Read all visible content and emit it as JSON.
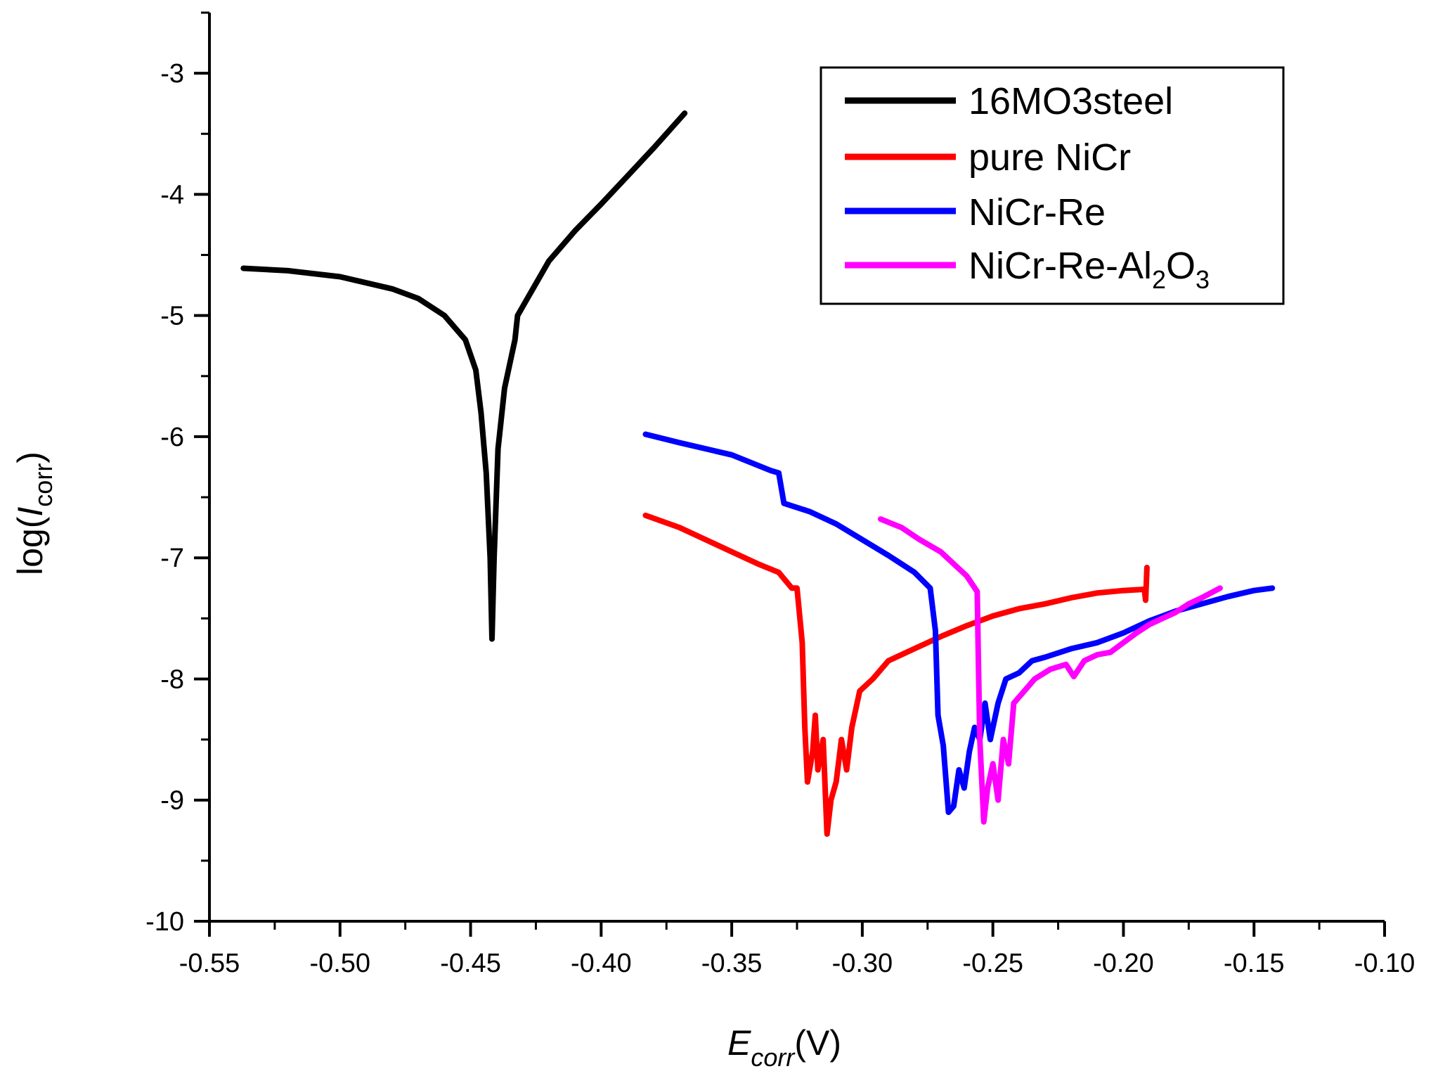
{
  "chart_data": {
    "type": "line",
    "title": "",
    "xlabel": {
      "main": "E",
      "sub": "corr",
      "unit": "(V)"
    },
    "ylabel": {
      "prefix": "log(",
      "main": "I",
      "sub": "corr",
      "suffix": ")"
    },
    "xlim": [
      -0.55,
      -0.1
    ],
    "ylim": [
      -10,
      -2.5
    ],
    "xticks": [
      -0.55,
      -0.5,
      -0.45,
      -0.4,
      -0.35,
      -0.3,
      -0.25,
      -0.2,
      -0.15,
      -0.1
    ],
    "xtick_labels": [
      "-0.55",
      "-0.50",
      "-0.45",
      "-0.40",
      "-0.35",
      "-0.30",
      "-0.25",
      "-0.20",
      "-0.15",
      "-0.10"
    ],
    "yticks": [
      -10,
      -9,
      -8,
      -7,
      -6,
      -5,
      -4,
      -3
    ],
    "ytick_labels": [
      "-10",
      "-9",
      "-8",
      "-7",
      "-6",
      "-5",
      "-4",
      "-3"
    ],
    "grid": false,
    "legend_position": "top-right",
    "series": [
      {
        "name": "16MO3steel",
        "color": "#000000",
        "points": [
          [
            -0.537,
            -4.61
          ],
          [
            -0.52,
            -4.63
          ],
          [
            -0.5,
            -4.68
          ],
          [
            -0.48,
            -4.78
          ],
          [
            -0.47,
            -4.86
          ],
          [
            -0.46,
            -5.0
          ],
          [
            -0.452,
            -5.2
          ],
          [
            -0.448,
            -5.45
          ],
          [
            -0.446,
            -5.8
          ],
          [
            -0.444,
            -6.3
          ],
          [
            -0.4425,
            -7.0
          ],
          [
            -0.4418,
            -7.67
          ],
          [
            -0.441,
            -7.0
          ],
          [
            -0.4395,
            -6.1
          ],
          [
            -0.437,
            -5.6
          ],
          [
            -0.433,
            -5.2
          ],
          [
            -0.432,
            -5.0
          ],
          [
            -0.428,
            -4.85
          ],
          [
            -0.42,
            -4.55
          ],
          [
            -0.41,
            -4.3
          ],
          [
            -0.4,
            -4.08
          ],
          [
            -0.39,
            -3.85
          ],
          [
            -0.38,
            -3.62
          ],
          [
            -0.368,
            -3.33
          ]
        ]
      },
      {
        "name": "pure NiCr",
        "color": "#ff0000",
        "points": [
          [
            -0.383,
            -6.65
          ],
          [
            -0.37,
            -6.75
          ],
          [
            -0.36,
            -6.85
          ],
          [
            -0.35,
            -6.95
          ],
          [
            -0.34,
            -7.05
          ],
          [
            -0.332,
            -7.12
          ],
          [
            -0.327,
            -7.25
          ],
          [
            -0.325,
            -7.25
          ],
          [
            -0.323,
            -7.7
          ],
          [
            -0.322,
            -8.4
          ],
          [
            -0.321,
            -8.85
          ],
          [
            -0.319,
            -8.6
          ],
          [
            -0.318,
            -8.3
          ],
          [
            -0.317,
            -8.75
          ],
          [
            -0.315,
            -8.5
          ],
          [
            -0.3135,
            -9.28
          ],
          [
            -0.312,
            -9.0
          ],
          [
            -0.31,
            -8.85
          ],
          [
            -0.308,
            -8.5
          ],
          [
            -0.306,
            -8.75
          ],
          [
            -0.304,
            -8.4
          ],
          [
            -0.301,
            -8.1
          ],
          [
            -0.296,
            -8.0
          ],
          [
            -0.29,
            -7.85
          ],
          [
            -0.28,
            -7.75
          ],
          [
            -0.27,
            -7.65
          ],
          [
            -0.26,
            -7.56
          ],
          [
            -0.25,
            -7.48
          ],
          [
            -0.24,
            -7.42
          ],
          [
            -0.23,
            -7.38
          ],
          [
            -0.22,
            -7.33
          ],
          [
            -0.21,
            -7.29
          ],
          [
            -0.2,
            -7.27
          ],
          [
            -0.192,
            -7.26
          ],
          [
            -0.1915,
            -7.35
          ],
          [
            -0.191,
            -7.08
          ]
        ]
      },
      {
        "name": "NiCr-Re",
        "color": "#0000ff",
        "points": [
          [
            -0.383,
            -5.98
          ],
          [
            -0.37,
            -6.05
          ],
          [
            -0.35,
            -6.15
          ],
          [
            -0.335,
            -6.28
          ],
          [
            -0.332,
            -6.3
          ],
          [
            -0.33,
            -6.55
          ],
          [
            -0.32,
            -6.62
          ],
          [
            -0.31,
            -6.72
          ],
          [
            -0.3,
            -6.85
          ],
          [
            -0.29,
            -6.98
          ],
          [
            -0.28,
            -7.12
          ],
          [
            -0.274,
            -7.25
          ],
          [
            -0.272,
            -7.6
          ],
          [
            -0.271,
            -8.3
          ],
          [
            -0.269,
            -8.55
          ],
          [
            -0.267,
            -9.1
          ],
          [
            -0.265,
            -9.05
          ],
          [
            -0.263,
            -8.75
          ],
          [
            -0.261,
            -8.9
          ],
          [
            -0.259,
            -8.6
          ],
          [
            -0.257,
            -8.4
          ],
          [
            -0.255,
            -8.5
          ],
          [
            -0.253,
            -8.2
          ],
          [
            -0.251,
            -8.5
          ],
          [
            -0.248,
            -8.2
          ],
          [
            -0.245,
            -8.0
          ],
          [
            -0.24,
            -7.95
          ],
          [
            -0.235,
            -7.85
          ],
          [
            -0.23,
            -7.82
          ],
          [
            -0.22,
            -7.75
          ],
          [
            -0.21,
            -7.7
          ],
          [
            -0.2,
            -7.62
          ],
          [
            -0.19,
            -7.52
          ],
          [
            -0.18,
            -7.44
          ],
          [
            -0.17,
            -7.38
          ],
          [
            -0.16,
            -7.32
          ],
          [
            -0.15,
            -7.27
          ],
          [
            -0.143,
            -7.25
          ]
        ]
      },
      {
        "name": "NiCr-Re-Al₂O₃",
        "label_main": "NiCr-Re-Al",
        "label_sub1": "2",
        "label_mid": "O",
        "label_sub2": "3",
        "color": "#ff00ff",
        "points": [
          [
            -0.293,
            -6.68
          ],
          [
            -0.285,
            -6.75
          ],
          [
            -0.278,
            -6.85
          ],
          [
            -0.27,
            -6.95
          ],
          [
            -0.265,
            -7.05
          ],
          [
            -0.26,
            -7.15
          ],
          [
            -0.256,
            -7.28
          ],
          [
            -0.2555,
            -7.9
          ],
          [
            -0.255,
            -8.5
          ],
          [
            -0.2535,
            -9.18
          ],
          [
            -0.252,
            -8.9
          ],
          [
            -0.25,
            -8.7
          ],
          [
            -0.248,
            -9.0
          ],
          [
            -0.246,
            -8.5
          ],
          [
            -0.244,
            -8.7
          ],
          [
            -0.242,
            -8.2
          ],
          [
            -0.238,
            -8.1
          ],
          [
            -0.234,
            -8.0
          ],
          [
            -0.228,
            -7.92
          ],
          [
            -0.222,
            -7.88
          ],
          [
            -0.219,
            -7.98
          ],
          [
            -0.215,
            -7.85
          ],
          [
            -0.21,
            -7.8
          ],
          [
            -0.205,
            -7.78
          ],
          [
            -0.2,
            -7.7
          ],
          [
            -0.195,
            -7.62
          ],
          [
            -0.19,
            -7.55
          ],
          [
            -0.185,
            -7.5
          ],
          [
            -0.18,
            -7.45
          ],
          [
            -0.175,
            -7.38
          ],
          [
            -0.17,
            -7.33
          ],
          [
            -0.163,
            -7.25
          ]
        ]
      }
    ]
  }
}
